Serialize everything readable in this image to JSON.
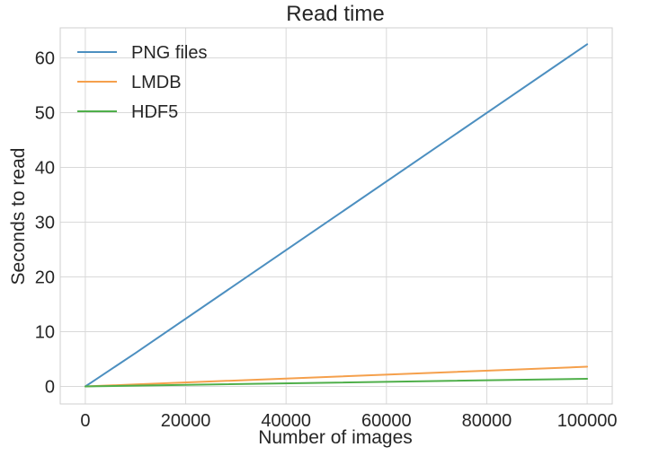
{
  "chart_data": {
    "type": "line",
    "title": "Read time",
    "xlabel": "Number of images",
    "ylabel": "Seconds to read",
    "xlim": [
      -5000,
      105000
    ],
    "ylim": [
      -3.2,
      65.5
    ],
    "x_ticks": [
      0,
      20000,
      40000,
      60000,
      80000,
      100000
    ],
    "y_ticks": [
      0,
      10,
      20,
      30,
      40,
      50,
      60
    ],
    "grid": true,
    "legend_position": "top-left",
    "series": [
      {
        "name": "PNG files",
        "color": "#4c8fc0",
        "x": [
          10,
          100,
          1000,
          10000,
          100000
        ],
        "y": [
          0.006,
          0.06,
          0.6,
          6.1,
          62.5
        ]
      },
      {
        "name": "LMDB",
        "color": "#f5a04c",
        "x": [
          10,
          100,
          1000,
          10000,
          100000
        ],
        "y": [
          0.0004,
          0.004,
          0.04,
          0.36,
          3.6
        ]
      },
      {
        "name": "HDF5",
        "color": "#4faf4a",
        "x": [
          10,
          100,
          1000,
          10000,
          100000
        ],
        "y": [
          0.0002,
          0.002,
          0.015,
          0.14,
          1.4
        ]
      }
    ]
  }
}
